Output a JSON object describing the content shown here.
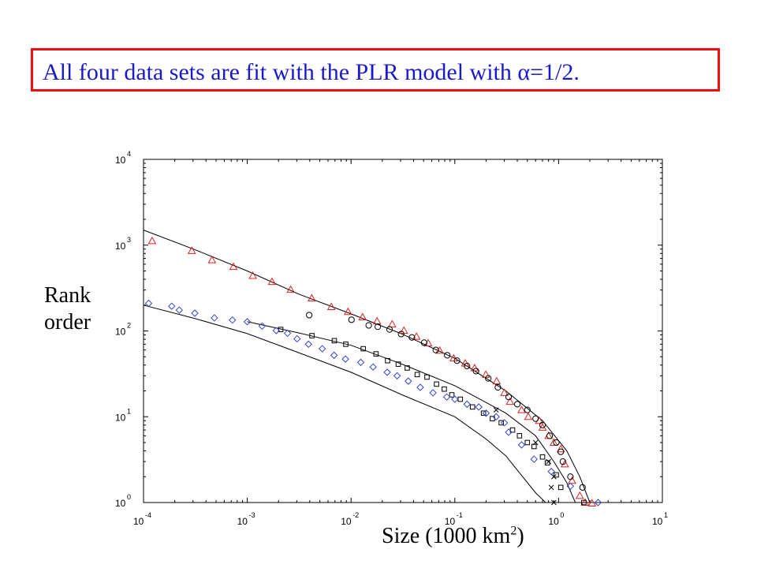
{
  "title": "All four data sets are fit with the PLR model with α=1/2.",
  "colors": {
    "title_border": "#ee1111",
    "title_text": "#1a1acc",
    "triangle": "#dd2222",
    "diamond": "#3344cc",
    "black": "#000000"
  },
  "chart_data": {
    "type": "scatter",
    "xlabel_main": "Size (1000 km",
    "xlabel_sup": "2",
    "xlabel_close": ")",
    "ylabel_line1": "Rank",
    "ylabel_line2": "order",
    "xscale": "log",
    "yscale": "log",
    "xlim": [
      0.0001,
      10
    ],
    "ylim": [
      1,
      10000
    ],
    "x_ticks": [
      {
        "base": "10",
        "exp": "-4",
        "value": 0.0001
      },
      {
        "base": "10",
        "exp": "-3",
        "value": 0.001
      },
      {
        "base": "10",
        "exp": "-2",
        "value": 0.01
      },
      {
        "base": "10",
        "exp": "-1",
        "value": 0.1
      },
      {
        "base": "10",
        "exp": "0",
        "value": 1
      },
      {
        "base": "10",
        "exp": "1",
        "value": 10
      }
    ],
    "y_ticks": [
      {
        "base": "10",
        "exp": "0",
        "value": 1
      },
      {
        "base": "10",
        "exp": "1",
        "value": 10
      },
      {
        "base": "10",
        "exp": "2",
        "value": 100
      },
      {
        "base": "10",
        "exp": "3",
        "value": 1000
      },
      {
        "base": "10",
        "exp": "4",
        "value": 10000
      }
    ],
    "series": [
      {
        "marker": "triangle",
        "color": "#dd2222",
        "points": [
          [
            0.000121,
            1120
          ],
          [
            0.000292,
            860
          ],
          [
            0.000457,
            670
          ],
          [
            0.000736,
            560
          ],
          [
            0.00113,
            440
          ],
          [
            0.00173,
            375
          ],
          [
            0.00262,
            303
          ],
          [
            0.00418,
            241
          ],
          [
            0.00645,
            191
          ],
          [
            0.00935,
            167
          ],
          [
            0.0129,
            145
          ],
          [
            0.0178,
            130
          ],
          [
            0.0249,
            120
          ],
          [
            0.0323,
            101
          ],
          [
            0.0427,
            86
          ],
          [
            0.0554,
            72
          ],
          [
            0.0714,
            59
          ],
          [
            0.0974,
            48
          ],
          [
            0.126,
            42
          ],
          [
            0.155,
            37
          ],
          [
            0.199,
            31
          ],
          [
            0.253,
            26
          ],
          [
            0.3,
            19
          ],
          [
            0.34,
            15
          ],
          [
            0.44,
            12
          ],
          [
            0.51,
            10
          ],
          [
            0.65,
            9
          ],
          [
            0.7,
            7.5
          ],
          [
            0.8,
            6
          ],
          [
            0.9,
            5
          ],
          [
            1.05,
            4.2
          ],
          [
            1.15,
            2.8
          ],
          [
            1.35,
            1.8
          ],
          [
            1.6,
            1.2
          ],
          [
            1.8,
            1.0
          ],
          [
            2.1,
            0.98
          ]
        ]
      },
      {
        "marker": "circle",
        "color": "#000000",
        "points": [
          [
            0.00395,
            153
          ],
          [
            0.0101,
            135
          ],
          [
            0.0148,
            116
          ],
          [
            0.0181,
            112
          ],
          [
            0.0235,
            104
          ],
          [
            0.0304,
            92
          ],
          [
            0.0386,
            84
          ],
          [
            0.0506,
            73
          ],
          [
            0.0656,
            60
          ],
          [
            0.0845,
            52
          ],
          [
            0.105,
            45
          ],
          [
            0.131,
            39
          ],
          [
            0.16,
            34
          ],
          [
            0.21,
            28
          ],
          [
            0.26,
            22
          ],
          [
            0.33,
            17
          ],
          [
            0.4,
            14
          ],
          [
            0.5,
            12
          ],
          [
            0.6,
            9.5
          ],
          [
            0.7,
            8
          ],
          [
            0.82,
            6
          ],
          [
            0.95,
            5
          ],
          [
            1.05,
            3.9
          ],
          [
            1.1,
            3
          ],
          [
            1.3,
            2
          ],
          [
            1.7,
            1.5
          ]
        ]
      },
      {
        "marker": "square",
        "color": "#000000",
        "points": [
          [
            0.0021,
            104
          ],
          [
            0.0042,
            88
          ],
          [
            0.0069,
            77
          ],
          [
            0.0089,
            70
          ],
          [
            0.0131,
            62
          ],
          [
            0.0174,
            54
          ],
          [
            0.0225,
            45
          ],
          [
            0.0285,
            41
          ],
          [
            0.0348,
            37
          ],
          [
            0.0434,
            31
          ],
          [
            0.0539,
            29
          ],
          [
            0.0666,
            24
          ],
          [
            0.0791,
            21
          ],
          [
            0.0936,
            18
          ],
          [
            0.113,
            16
          ],
          [
            0.148,
            13
          ],
          [
            0.189,
            11
          ],
          [
            0.23,
            9.5
          ],
          [
            0.28,
            8.5
          ],
          [
            0.36,
            7
          ],
          [
            0.42,
            6
          ],
          [
            0.5,
            5
          ],
          [
            0.58,
            4.5
          ],
          [
            0.7,
            3.4
          ],
          [
            0.78,
            2.9
          ],
          [
            0.95,
            2.1
          ],
          [
            1.05,
            1.5
          ],
          [
            1.75,
            1.0
          ]
        ]
      },
      {
        "marker": "x",
        "color": "#000000",
        "points": [
          [
            0.25,
            12
          ],
          [
            0.6,
            5
          ],
          [
            0.8,
            3
          ],
          [
            0.9,
            2
          ],
          [
            0.85,
            1.5
          ],
          [
            0.9,
            1.0
          ]
        ]
      },
      {
        "marker": "diamond",
        "color": "#3344cc",
        "points": [
          [
            0.000112,
            210
          ],
          [
            0.000187,
            194
          ],
          [
            0.000221,
            175
          ],
          [
            0.000312,
            161
          ],
          [
            0.000482,
            142
          ],
          [
            0.000719,
            134
          ],
          [
            0.001,
            128
          ],
          [
            0.00139,
            114
          ],
          [
            0.0019,
            101
          ],
          [
            0.00244,
            94
          ],
          [
            0.00302,
            81
          ],
          [
            0.00389,
            70
          ],
          [
            0.00528,
            62
          ],
          [
            0.00686,
            52
          ],
          [
            0.00883,
            47
          ],
          [
            0.0124,
            43
          ],
          [
            0.0163,
            38
          ],
          [
            0.0223,
            33
          ],
          [
            0.0278,
            30
          ],
          [
            0.0356,
            26
          ],
          [
            0.0464,
            22
          ],
          [
            0.0616,
            19
          ],
          [
            0.0836,
            17
          ],
          [
            0.1,
            16
          ],
          [
            0.131,
            14
          ],
          [
            0.17,
            13
          ],
          [
            0.2,
            11
          ],
          [
            0.25,
            10
          ],
          [
            0.3,
            8.5
          ],
          [
            0.33,
            6.6
          ],
          [
            0.44,
            4.7
          ],
          [
            0.58,
            3.2
          ],
          [
            0.85,
            2.3
          ],
          [
            1.3,
            1.55
          ],
          [
            2.4,
            1.0
          ]
        ]
      }
    ],
    "fit_curves": [
      {
        "points": [
          [
            0.0001,
            1500
          ],
          [
            0.00031,
            890
          ],
          [
            0.001,
            500
          ],
          [
            0.0031,
            270
          ],
          [
            0.01,
            158
          ],
          [
            0.031,
            92
          ],
          [
            0.1,
            48
          ],
          [
            0.31,
            20
          ],
          [
            0.7,
            9
          ],
          [
            1.2,
            4
          ],
          [
            1.6,
            2
          ],
          [
            2.0,
            1.0
          ]
        ]
      },
      {
        "points": [
          [
            0.001,
            128
          ],
          [
            0.0031,
            95
          ],
          [
            0.01,
            68
          ],
          [
            0.031,
            41
          ],
          [
            0.1,
            23
          ],
          [
            0.31,
            11
          ],
          [
            0.6,
            6
          ],
          [
            0.9,
            3
          ],
          [
            1.2,
            1.7
          ],
          [
            1.45,
            1.0
          ]
        ]
      },
      {
        "points": [
          [
            0.0001,
            200
          ],
          [
            0.00031,
            140
          ],
          [
            0.001,
            93
          ],
          [
            0.0031,
            56
          ],
          [
            0.01,
            33
          ],
          [
            0.031,
            18
          ],
          [
            0.1,
            10
          ],
          [
            0.2,
            5.5
          ],
          [
            0.31,
            3.5
          ],
          [
            0.45,
            2
          ],
          [
            0.6,
            1.3
          ],
          [
            0.75,
            1.0
          ]
        ]
      }
    ]
  }
}
